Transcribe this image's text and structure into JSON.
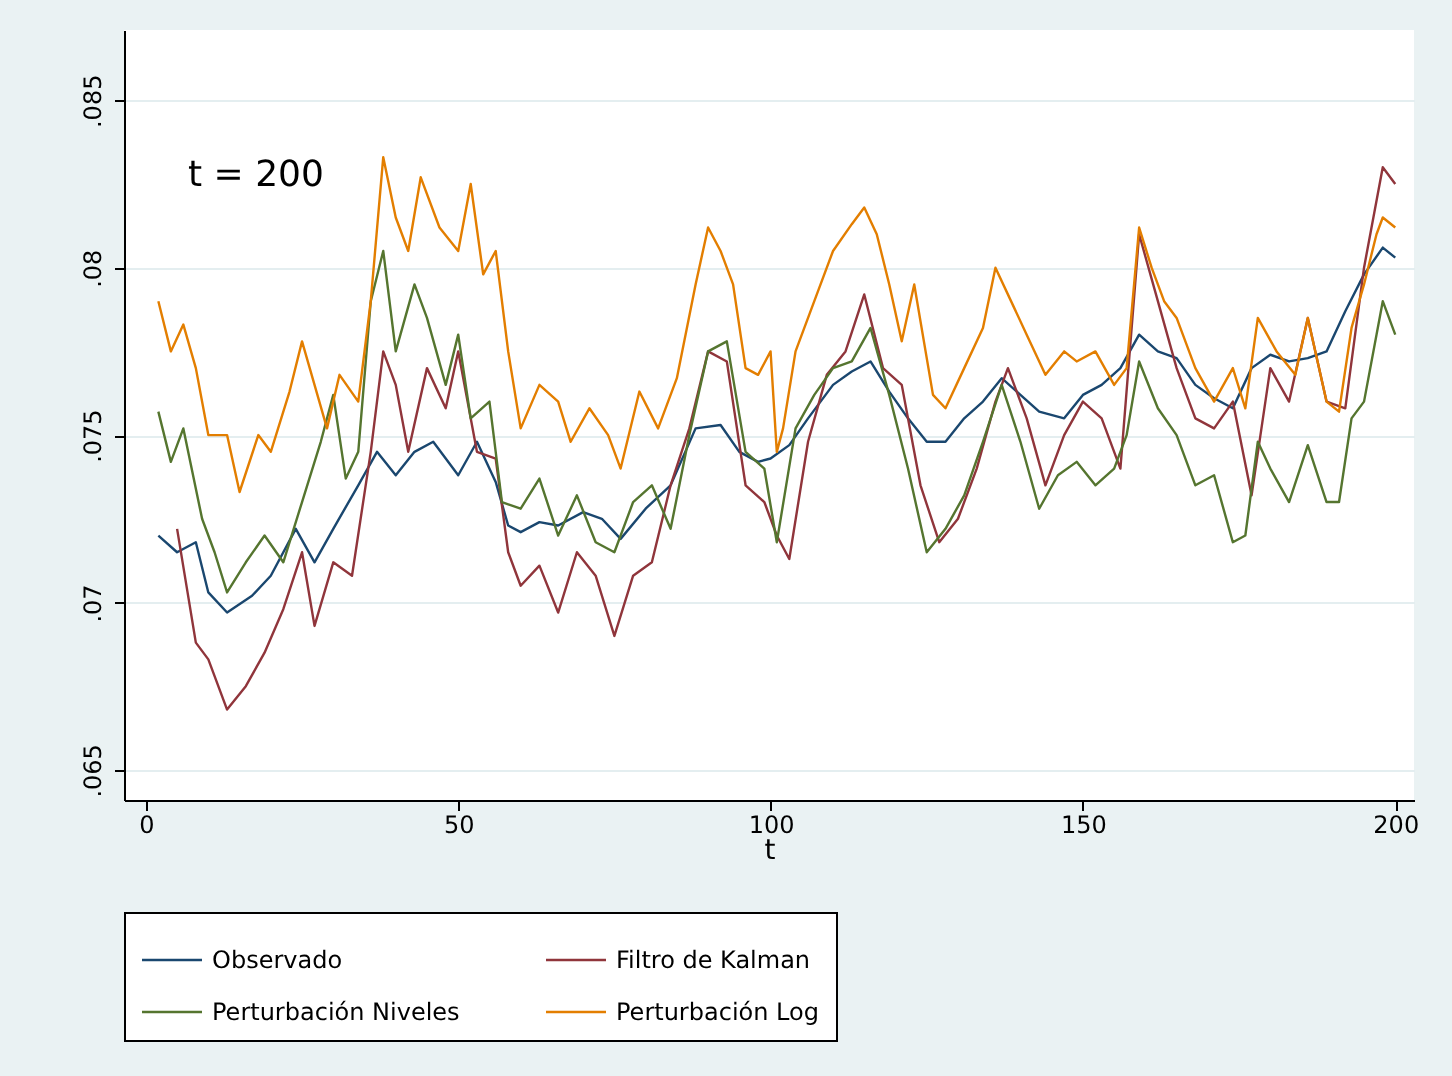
{
  "chart_data": {
    "type": "line",
    "xlabel": "t",
    "annotations": [
      "t = 200"
    ],
    "xlim": [
      -3.5,
      203
    ],
    "xticks": [
      0,
      50,
      100,
      150,
      200
    ],
    "ylim": [
      0.0641,
      0.0871
    ],
    "yticks": [
      {
        "value": 0.065,
        "label": ".065"
      },
      {
        "value": 0.07,
        "label": ".07"
      },
      {
        "value": 0.075,
        "label": ".075"
      },
      {
        "value": 0.08,
        "label": ".08"
      },
      {
        "value": 0.085,
        "label": ".085"
      }
    ],
    "grid": "y",
    "legend": "bottom",
    "line_style": "solid",
    "series": [
      {
        "name": "Observado",
        "color": "#1a476f",
        "x": [
          2,
          5,
          8,
          10,
          13,
          17,
          20,
          24,
          27,
          30,
          34,
          37,
          40,
          43,
          46,
          50,
          53,
          56,
          58,
          60,
          63,
          66,
          70,
          73,
          76,
          80,
          84,
          88,
          92,
          95,
          98,
          100,
          103,
          106,
          110,
          113,
          116,
          119,
          122,
          125,
          128,
          131,
          134,
          137,
          140,
          143,
          147,
          150,
          153,
          156,
          159,
          162,
          165,
          168,
          171,
          174,
          177,
          180,
          183,
          186,
          189,
          192,
          195,
          198,
          200
        ],
        "values": [
          0.072,
          0.0715,
          0.0718,
          0.0703,
          0.0697,
          0.0702,
          0.0708,
          0.0722,
          0.0712,
          0.0722,
          0.0735,
          0.0745,
          0.0738,
          0.0745,
          0.0748,
          0.0738,
          0.0748,
          0.0736,
          0.0723,
          0.0721,
          0.0724,
          0.0723,
          0.0727,
          0.0725,
          0.0719,
          0.0728,
          0.0735,
          0.0752,
          0.0753,
          0.0745,
          0.0742,
          0.0743,
          0.0747,
          0.0755,
          0.0765,
          0.0769,
          0.0772,
          0.0763,
          0.0755,
          0.0748,
          0.0748,
          0.0755,
          0.076,
          0.0767,
          0.0762,
          0.0757,
          0.0755,
          0.0762,
          0.0765,
          0.077,
          0.078,
          0.0775,
          0.0773,
          0.0765,
          0.0761,
          0.0758,
          0.077,
          0.0774,
          0.0772,
          0.0773,
          0.0775,
          0.0787,
          0.0798,
          0.0806,
          0.0803
        ]
      },
      {
        "name": "Filtro de Kalman",
        "color": "#90353b",
        "x": [
          5,
          8,
          10,
          13,
          16,
          19,
          22,
          25,
          27,
          30,
          33,
          36,
          38,
          40,
          42,
          45,
          48,
          50,
          53,
          56,
          58,
          60,
          63,
          66,
          69,
          72,
          75,
          78,
          81,
          84,
          87,
          90,
          93,
          96,
          99,
          101,
          103,
          106,
          109,
          112,
          115,
          118,
          121,
          124,
          127,
          130,
          133,
          136,
          138,
          141,
          144,
          147,
          150,
          153,
          156,
          159,
          162,
          165,
          168,
          171,
          174,
          177,
          180,
          183,
          186,
          189,
          192,
          195,
          198,
          200
        ],
        "values": [
          0.0722,
          0.0688,
          0.0683,
          0.0668,
          0.0675,
          0.0685,
          0.0698,
          0.0715,
          0.0693,
          0.0712,
          0.0708,
          0.0745,
          0.0775,
          0.0765,
          0.0745,
          0.077,
          0.0758,
          0.0775,
          0.0745,
          0.0743,
          0.0715,
          0.0705,
          0.0711,
          0.0697,
          0.0715,
          0.0708,
          0.069,
          0.0708,
          0.0712,
          0.0735,
          0.0752,
          0.0775,
          0.0772,
          0.0735,
          0.073,
          0.072,
          0.0713,
          0.0748,
          0.0768,
          0.0775,
          0.0792,
          0.077,
          0.0765,
          0.0735,
          0.0718,
          0.0725,
          0.074,
          0.076,
          0.077,
          0.0755,
          0.0735,
          0.075,
          0.076,
          0.0755,
          0.074,
          0.081,
          0.079,
          0.077,
          0.0755,
          0.0752,
          0.076,
          0.0732,
          0.077,
          0.076,
          0.0785,
          0.076,
          0.0758,
          0.08,
          0.083,
          0.0825
        ]
      },
      {
        "name": "Perturbación Niveles",
        "color": "#55752f",
        "x": [
          2,
          4,
          6,
          9,
          11,
          13,
          16,
          19,
          22,
          25,
          28,
          30,
          32,
          34,
          36,
          38,
          40,
          43,
          45,
          48,
          50,
          52,
          55,
          57,
          60,
          63,
          66,
          69,
          72,
          75,
          78,
          81,
          84,
          87,
          90,
          93,
          96,
          99,
          101,
          104,
          107,
          110,
          113,
          116,
          119,
          122,
          125,
          128,
          131,
          134,
          137,
          140,
          143,
          146,
          149,
          152,
          155,
          157,
          159,
          162,
          165,
          168,
          171,
          174,
          176,
          178,
          180,
          183,
          186,
          189,
          191,
          193,
          195,
          198,
          200
        ],
        "values": [
          0.0757,
          0.0742,
          0.0752,
          0.0725,
          0.0715,
          0.0703,
          0.0712,
          0.072,
          0.0712,
          0.073,
          0.0748,
          0.0762,
          0.0737,
          0.0745,
          0.079,
          0.0805,
          0.0775,
          0.0795,
          0.0785,
          0.0765,
          0.078,
          0.0755,
          0.076,
          0.073,
          0.0728,
          0.0737,
          0.072,
          0.0732,
          0.0718,
          0.0715,
          0.073,
          0.0735,
          0.0722,
          0.075,
          0.0775,
          0.0778,
          0.0745,
          0.074,
          0.0718,
          0.0752,
          0.0762,
          0.077,
          0.0772,
          0.0782,
          0.0762,
          0.074,
          0.0715,
          0.0722,
          0.0732,
          0.0748,
          0.0765,
          0.0748,
          0.0728,
          0.0738,
          0.0742,
          0.0735,
          0.074,
          0.075,
          0.0772,
          0.0758,
          0.075,
          0.0735,
          0.0738,
          0.0718,
          0.072,
          0.0748,
          0.074,
          0.073,
          0.0747,
          0.073,
          0.073,
          0.0755,
          0.076,
          0.079,
          0.078
        ]
      },
      {
        "name": "Perturbación Log",
        "color": "#e37e00",
        "x": [
          2,
          4,
          6,
          8,
          10,
          13,
          15,
          18,
          20,
          23,
          25,
          27,
          29,
          31,
          34,
          36,
          38,
          40,
          42,
          44,
          47,
          50,
          52,
          54,
          56,
          58,
          60,
          63,
          66,
          68,
          71,
          74,
          76,
          79,
          82,
          85,
          88,
          90,
          92,
          94,
          96,
          98,
          100,
          101,
          102,
          104,
          107,
          110,
          113,
          115,
          117,
          119,
          121,
          123,
          126,
          128,
          131,
          134,
          136,
          139,
          141,
          144,
          147,
          149,
          152,
          155,
          157,
          159,
          161,
          163,
          165,
          168,
          171,
          174,
          176,
          178,
          181,
          184,
          186,
          189,
          191,
          193,
          195,
          197,
          198,
          200
        ],
        "values": [
          0.079,
          0.0775,
          0.0783,
          0.077,
          0.075,
          0.075,
          0.0733,
          0.075,
          0.0745,
          0.0763,
          0.0778,
          0.0765,
          0.0752,
          0.0768,
          0.076,
          0.079,
          0.0833,
          0.0815,
          0.0805,
          0.0827,
          0.0812,
          0.0805,
          0.0825,
          0.0798,
          0.0805,
          0.0775,
          0.0752,
          0.0765,
          0.076,
          0.0748,
          0.0758,
          0.075,
          0.074,
          0.0763,
          0.0752,
          0.0767,
          0.0795,
          0.0812,
          0.0805,
          0.0795,
          0.077,
          0.0768,
          0.0775,
          0.0745,
          0.0752,
          0.0775,
          0.079,
          0.0805,
          0.0813,
          0.0818,
          0.081,
          0.0795,
          0.0778,
          0.0795,
          0.0762,
          0.0758,
          0.077,
          0.0782,
          0.08,
          0.0788,
          0.078,
          0.0768,
          0.0775,
          0.0772,
          0.0775,
          0.0765,
          0.077,
          0.0812,
          0.08,
          0.079,
          0.0785,
          0.077,
          0.076,
          0.077,
          0.0758,
          0.0785,
          0.0775,
          0.0768,
          0.0785,
          0.076,
          0.0757,
          0.0782,
          0.0795,
          0.081,
          0.0815,
          0.0812
        ]
      }
    ]
  }
}
